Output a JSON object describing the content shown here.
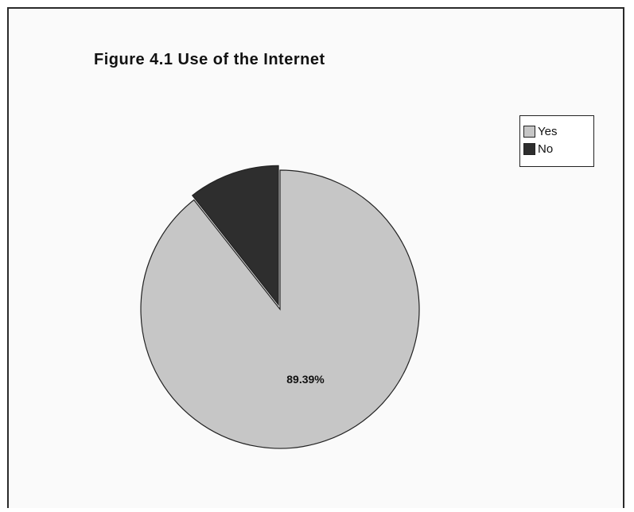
{
  "chart_data": {
    "type": "pie",
    "title": "Figure 4.1 Use of the Internet",
    "categories": [
      "Yes",
      "No"
    ],
    "values": [
      89.39,
      10.61
    ],
    "data_labels": [
      "89.39%",
      ""
    ],
    "colors": [
      "#c6c6c6",
      "#2e2e2e"
    ],
    "legend": {
      "position": "right",
      "items": [
        "Yes",
        "No"
      ]
    }
  }
}
